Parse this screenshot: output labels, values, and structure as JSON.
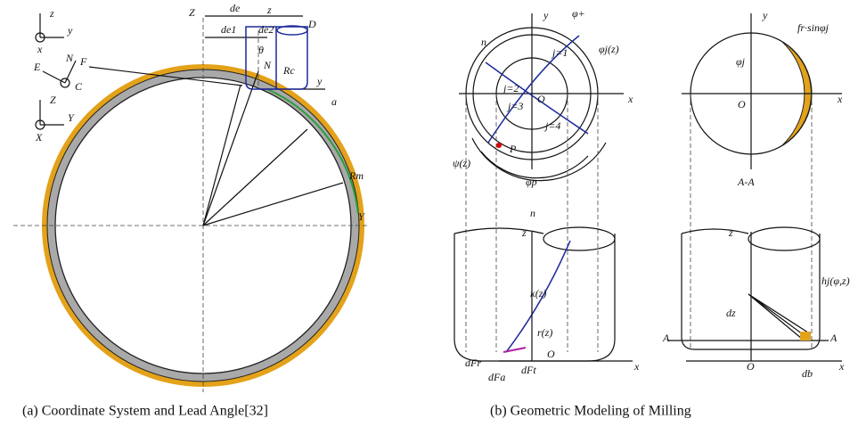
{
  "panel_a": {
    "labels": [
      "z",
      "y",
      "x",
      "E",
      "N",
      "C",
      "Z",
      "Y",
      "X",
      "Z",
      "de",
      "z",
      "D",
      "de1",
      "de2",
      "θ",
      "N",
      "Rc",
      "y",
      "F",
      "a",
      "Rm",
      "Y"
    ],
    "caption": "(a) Coordinate System and Lead Angle[32]"
  },
  "panel_b": {
    "labels": [
      "y",
      "φ+",
      "n",
      "φj(z)",
      "j=1",
      "j=2",
      "O",
      "j=3",
      "j=4",
      "x",
      "P",
      "ψ(z)",
      "φp",
      "y",
      "fr·sinφj",
      "φj",
      "O",
      "x",
      "A-A",
      "n",
      "z",
      "κ(z)",
      "r(z)",
      "dFr",
      "dFa",
      "dFt",
      "O",
      "x",
      "z",
      "hj(φ,z)",
      "dz",
      "A",
      "A",
      "O",
      "x",
      "db"
    ],
    "caption": "(b) Geometric Modeling of Milling"
  }
}
